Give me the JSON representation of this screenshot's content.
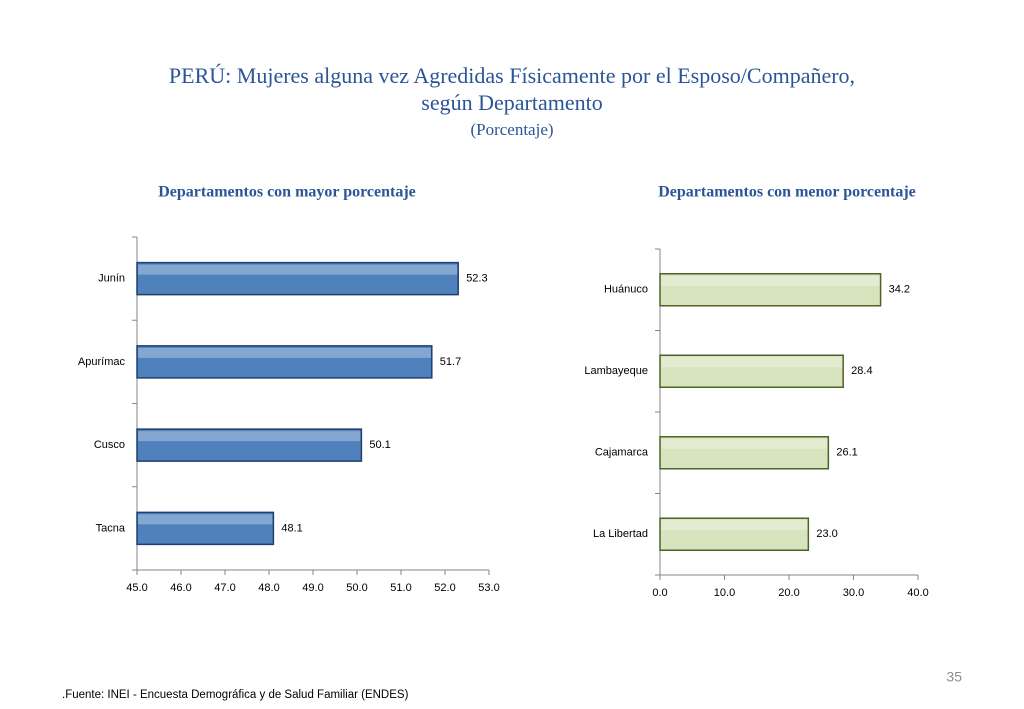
{
  "title": [
    "PERÚ: Mujeres alguna vez Agredidas Físicamente por el Esposo/Compañero,",
    "según Departamento"
  ],
  "subtitle": "(Porcentaje)",
  "chart_data": [
    {
      "type": "hbar",
      "title": "Departamentos con mayor porcentaje",
      "categories": [
        "Junín",
        "Apurímac",
        "Cusco",
        "Tacna"
      ],
      "values": [
        52.3,
        51.7,
        50.1,
        48.1
      ],
      "color": "#4f81bd",
      "edge_color": "#1f3f6e",
      "xlim": [
        45,
        53
      ],
      "xticks": [
        {
          "value": 45,
          "label": "45.0"
        },
        {
          "value": 46,
          "label": "46.0"
        },
        {
          "value": 47,
          "label": "47.0"
        },
        {
          "value": 48,
          "label": "48.0"
        },
        {
          "value": 49,
          "label": "49.0"
        },
        {
          "value": 50,
          "label": "50.0"
        },
        {
          "value": 51,
          "label": "51.0"
        },
        {
          "value": 52,
          "label": "52.0"
        },
        {
          "value": 53,
          "label": "53.0"
        }
      ]
    },
    {
      "type": "hbar",
      "title": "Departamentos con menor porcentaje",
      "categories": [
        "Huánuco",
        "Lambayeque",
        "Cajamarca",
        "La Libertad"
      ],
      "values": [
        34.2,
        28.4,
        26.1,
        23.0
      ],
      "value_labels": [
        "34.2",
        "28.4",
        "26.1",
        "23.0"
      ],
      "color": "#d7e4bd",
      "edge_color": "#4f6228",
      "xlim": [
        0,
        40
      ],
      "xticks": [
        {
          "value": 0,
          "label": "0.0"
        },
        {
          "value": 10,
          "label": "10.0"
        },
        {
          "value": 20,
          "label": "20.0"
        },
        {
          "value": 30,
          "label": "30.0"
        },
        {
          "value": 40,
          "label": "40.0"
        }
      ]
    }
  ],
  "source": ".Fuente: INEI - Encuesta Demográfica y de Salud Familiar (ENDES)",
  "page_number": "35"
}
